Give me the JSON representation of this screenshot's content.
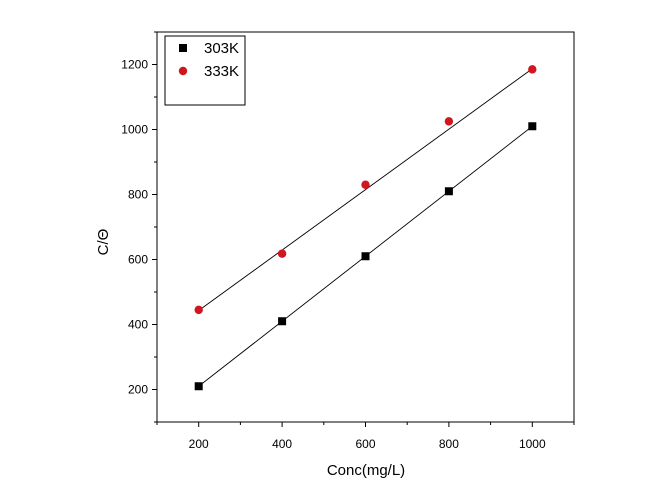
{
  "chart_data": {
    "type": "scatter",
    "xlabel": "Conc(mg/L)",
    "ylabel": "C/Θ",
    "xlim": [
      100,
      1100
    ],
    "ylim": [
      100,
      1300
    ],
    "xticks": [
      200,
      400,
      600,
      800,
      1000
    ],
    "yticks": [
      200,
      400,
      600,
      800,
      1000,
      1200
    ],
    "grid": false,
    "legend_position": "top-left",
    "series": [
      {
        "name": "303K",
        "marker": "square",
        "color": "#000000",
        "x": [
          200,
          400,
          600,
          800,
          1000
        ],
        "y": [
          210,
          410,
          610,
          810,
          1010
        ],
        "fit": [
          200,
          210,
          1000,
          1010
        ]
      },
      {
        "name": "333K",
        "marker": "circle",
        "color": "#d0161e",
        "x": [
          200,
          400,
          600,
          800,
          1000
        ],
        "y": [
          445,
          618,
          830,
          1025,
          1185
        ],
        "fit": [
          200,
          443,
          1000,
          1187
        ]
      }
    ]
  }
}
